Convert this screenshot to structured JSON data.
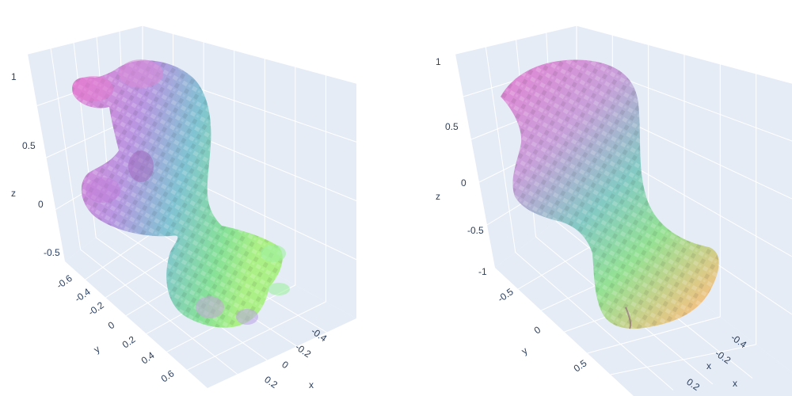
{
  "chart_data": [
    {
      "type": "mesh3d",
      "title": "",
      "axes": {
        "x": {
          "label": "x",
          "ticks": [
            "-0.4",
            "-0.2",
            "0",
            "0.2"
          ]
        },
        "y": {
          "label": "y",
          "ticks": [
            "-0.6",
            "-0.4",
            "-0.2",
            "0",
            "0.2",
            "0.4",
            "0.6"
          ]
        },
        "z": {
          "label": "z",
          "ticks": [
            "-0.5",
            "0",
            "0.5",
            "1"
          ]
        }
      },
      "colorscale": [
        "#e47ad0",
        "#b58fe0",
        "#78c0cf",
        "#7fe08f",
        "#a6f07c"
      ],
      "showgrid": true,
      "legend": "none"
    },
    {
      "type": "mesh3d",
      "title": "",
      "axes": {
        "x": {
          "label": "x",
          "ticks": [
            "-0.4",
            "-0.2",
            "0.2"
          ]
        },
        "y": {
          "label": "y",
          "ticks": [
            "-0.5",
            "0",
            "0.5"
          ]
        },
        "z": {
          "label": "z",
          "ticks": [
            "-1",
            "-0.5",
            "0",
            "0.5",
            "1"
          ]
        }
      },
      "colorscale": [
        "#e47ad0",
        "#c69ad8",
        "#7cc7c0",
        "#8ee08c",
        "#f0c07a"
      ],
      "showgrid": true,
      "legend": "none"
    }
  ]
}
